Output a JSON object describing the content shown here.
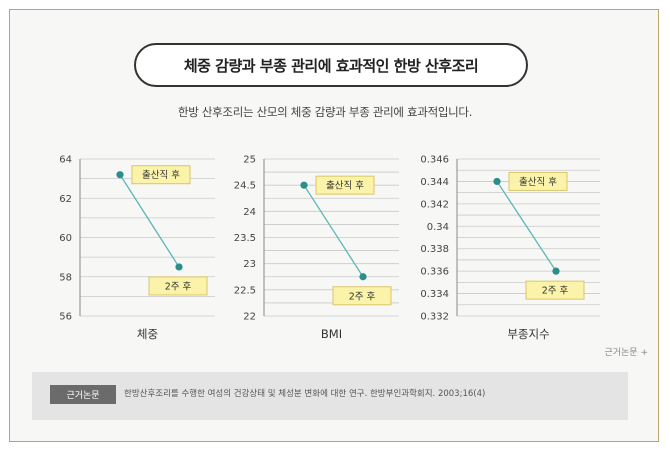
{
  "header": {
    "title": "체중 감량과 부종 관리에 효과적인 한방 산후조리",
    "subtitle": "한방 산후조리는 산모의 체중 감량과 부종 관리에 효과적입니다."
  },
  "colors": {
    "line": "#5bb7b7",
    "marker": "#2a8f8b",
    "label_fill": "#fbf3a9",
    "label_stroke": "#d9c66a",
    "frame": "#b9a46a"
  },
  "chart_data": [
    {
      "type": "line",
      "xlabel": "체중",
      "categories": [
        "출산직 후",
        "2주 후"
      ],
      "values": [
        63.2,
        58.5
      ],
      "ylim": [
        56,
        64
      ],
      "yticks": [
        "56",
        "58",
        "60",
        "62",
        "64"
      ],
      "tickvals": [
        56,
        58,
        60,
        62,
        64
      ],
      "grid": true,
      "labels": [
        "출산직 후",
        "2주 후"
      ]
    },
    {
      "type": "line",
      "xlabel": "BMI",
      "categories": [
        "출산직 후",
        "2주 후"
      ],
      "values": [
        24.5,
        22.75
      ],
      "ylim": [
        22,
        25
      ],
      "yticks": [
        "22",
        "22.5",
        "23",
        "23.5",
        "24",
        "24.5",
        "25"
      ],
      "tickvals": [
        22,
        22.5,
        23,
        23.5,
        24,
        24.5,
        25
      ],
      "grid": true,
      "labels": [
        "출산직 후",
        "2주 후"
      ]
    },
    {
      "type": "line",
      "xlabel": "부종지수",
      "categories": [
        "출산직 후",
        "2주 후"
      ],
      "values": [
        0.344,
        0.336
      ],
      "ylim": [
        0.332,
        0.346
      ],
      "yticks": [
        "0.332",
        "0.334",
        "0.336",
        "0.338",
        "0.34",
        "0.342",
        "0.344",
        "0.346"
      ],
      "tickvals": [
        0.332,
        0.334,
        0.336,
        0.338,
        0.34,
        0.342,
        0.344,
        0.346
      ],
      "grid": true,
      "labels": [
        "출산직 후",
        "2주 후"
      ]
    }
  ],
  "source": {
    "link_label": "근거논문 +",
    "badge": "근거논문",
    "citation": "한방산후조리를 수행한 여성의 건강상태 및 체성분 변화에 대한 연구. 한방부인과학회지. 2003;16(4)"
  }
}
